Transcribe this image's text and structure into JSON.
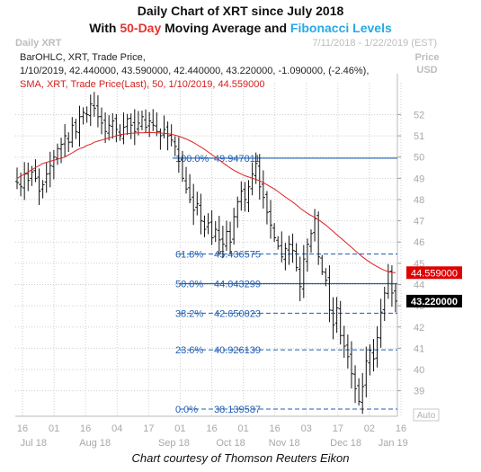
{
  "header": {
    "line1": "Daily Chart of XRT since July 2018",
    "line2_prefix": "With ",
    "line2_red": "50-Day",
    "line2_mid": " Moving Average and ",
    "line2_blue": "Fibonacci Levels"
  },
  "panel": {
    "name": "Daily XRT",
    "date_range": "7/11/2018 - 1/22/2019 (EST)",
    "price_label_1": "Price",
    "price_label_2": "USD",
    "auto_label": "Auto"
  },
  "legend": {
    "line1": "BarOHLC, XRT, Trade Price,",
    "line2": "1/10/2019, 42.440000, 43.590000, 42.440000, 43.220000, -1.090000, (-2.46%),",
    "line3": "SMA, XRT, Trade Price(Last), 50, 1/10/2019, 44.559000"
  },
  "caption": "Chart courtesy of Thomson Reuters Eikon",
  "colors": {
    "bars": "#111111",
    "sma": "#e02020",
    "fib_line": "#1f5fb4",
    "sma_tag": "#e00000",
    "price_tag": "#000000",
    "grid": "#cfcfcf"
  },
  "chart_data": {
    "type": "bar",
    "subtype": "ohlc",
    "symbol": "XRT",
    "ylim": [
      37.8,
      53.5
    ],
    "yticks": [
      39,
      40,
      41,
      42,
      43,
      44,
      45,
      46,
      47,
      48,
      49,
      50,
      51,
      52
    ],
    "x_tick_labels": [
      "16",
      "01",
      "16",
      "04",
      "17",
      "01",
      "16",
      "01",
      "16",
      "03",
      "17",
      "02",
      "16"
    ],
    "month_labels": [
      "Jul 18",
      "Aug 18",
      "Sep 18",
      "Oct 18",
      "Nov 18",
      "Dec 18",
      "Jan 19"
    ],
    "fib_levels": [
      {
        "pct": "100.0%",
        "value": 49.947011
      },
      {
        "pct": "61.8%",
        "value": 45.436575
      },
      {
        "pct": "50.0%",
        "value": 44.043299
      },
      {
        "pct": "38.2%",
        "value": 42.650023
      },
      {
        "pct": "23.6%",
        "value": 40.926139
      },
      {
        "pct": "0.0%",
        "value": 38.139587
      }
    ],
    "sma_last": "44.559000",
    "close_last": "43.220000",
    "close": [
      48.8,
      48.6,
      49.2,
      48.9,
      49.3,
      49.0,
      48.4,
      48.7,
      49.2,
      49.6,
      50.0,
      50.4,
      50.6,
      51.0,
      50.7,
      51.5,
      51.2,
      51.9,
      52.1,
      52.0,
      52.5,
      52.3,
      51.9,
      51.6,
      51.2,
      51.5,
      51.7,
      51.3,
      51.0,
      51.4,
      51.8,
      51.5,
      51.2,
      51.6,
      51.9,
      51.4,
      51.7,
      51.5,
      51.2,
      51.0,
      51.3,
      51.0,
      50.8,
      50.5,
      49.8,
      49.0,
      48.5,
      48.0,
      47.5,
      47.8,
      47.0,
      46.6,
      46.9,
      46.2,
      46.6,
      46.1,
      45.9,
      46.5,
      46.0,
      47.2,
      47.9,
      48.4,
      48.0,
      48.6,
      49.2,
      49.7,
      48.6,
      48.1,
      47.4,
      46.8,
      46.2,
      45.8,
      45.3,
      45.7,
      45.9,
      45.6,
      44.8,
      43.9,
      45.2,
      45.9,
      46.4,
      47.1,
      45.3,
      44.6,
      44.2,
      42.8,
      42.1,
      42.9,
      41.6,
      41.1,
      40.6,
      39.8,
      39.1,
      38.5,
      39.2,
      40.4,
      40.9,
      40.5,
      41.5,
      42.7,
      43.6,
      44.6,
      43.6,
      43.22
    ],
    "sma": [
      49.0,
      49.1,
      49.2,
      49.3,
      49.4,
      49.5,
      49.6,
      49.7,
      49.75,
      49.8,
      49.85,
      49.9,
      49.95,
      50.0,
      50.1,
      50.2,
      50.3,
      50.4,
      50.45,
      50.55,
      50.6,
      50.7,
      50.75,
      50.8,
      50.85,
      50.9,
      50.95,
      51.0,
      51.05,
      51.08,
      51.1,
      51.12,
      51.13,
      51.14,
      51.14,
      51.15,
      51.15,
      51.15,
      51.14,
      51.13,
      51.12,
      51.1,
      51.07,
      51.03,
      50.98,
      50.92,
      50.85,
      50.77,
      50.68,
      50.58,
      50.47,
      50.36,
      50.24,
      50.12,
      49.99,
      49.86,
      49.73,
      49.61,
      49.49,
      49.38,
      49.29,
      49.2,
      49.12,
      49.06,
      49.0,
      48.95,
      48.88,
      48.8,
      48.7,
      48.6,
      48.5,
      48.38,
      48.25,
      48.12,
      48.0,
      47.88,
      47.75,
      47.6,
      47.47,
      47.35,
      47.25,
      47.16,
      47.05,
      46.93,
      46.8,
      46.65,
      46.5,
      46.35,
      46.2,
      46.05,
      45.9,
      45.75,
      45.6,
      45.45,
      45.3,
      45.17,
      45.05,
      44.94,
      44.84,
      44.75,
      44.67,
      44.61,
      44.57,
      44.559
    ]
  }
}
